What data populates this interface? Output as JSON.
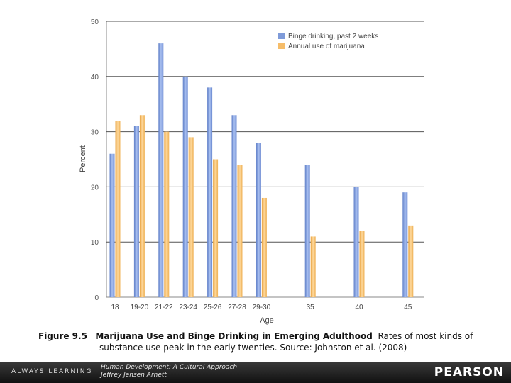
{
  "chart_data": {
    "type": "bar",
    "title": "",
    "xlabel": "Age",
    "ylabel": "Percent",
    "ylim": [
      0,
      50
    ],
    "yticks": [
      0,
      10,
      20,
      30,
      40,
      50
    ],
    "grid": true,
    "legend_position": "top-right",
    "categories": [
      "18",
      "19-20",
      "21-22",
      "23-24",
      "25-26",
      "27-28",
      "29-30",
      "35",
      "40",
      "45"
    ],
    "series": [
      {
        "name": "Binge drinking, past 2 weeks",
        "color": "#7f9bd9",
        "values": [
          26,
          31,
          46,
          40,
          38,
          33,
          28,
          24,
          20,
          19
        ]
      },
      {
        "name": "Annual use of marijuana",
        "color": "#f6bd6a",
        "values": [
          32,
          33,
          30,
          29,
          25,
          24,
          18,
          11,
          12,
          13
        ]
      }
    ]
  },
  "caption": {
    "label": "Figure 9.5",
    "title": "Marijuana Use and Binge Drinking in Emerging Adulthood",
    "text_line1": "Rates of most kinds of",
    "text_line2": "substance use peak in the early twenties. Source: Johnston et al. (2008)"
  },
  "footer": {
    "tagline": "ALWAYS LEARNING",
    "book_title": "Human Development: A Cultural Approach",
    "author": "Jeffrey Jensen Arnett",
    "brand": "PEARSON"
  }
}
